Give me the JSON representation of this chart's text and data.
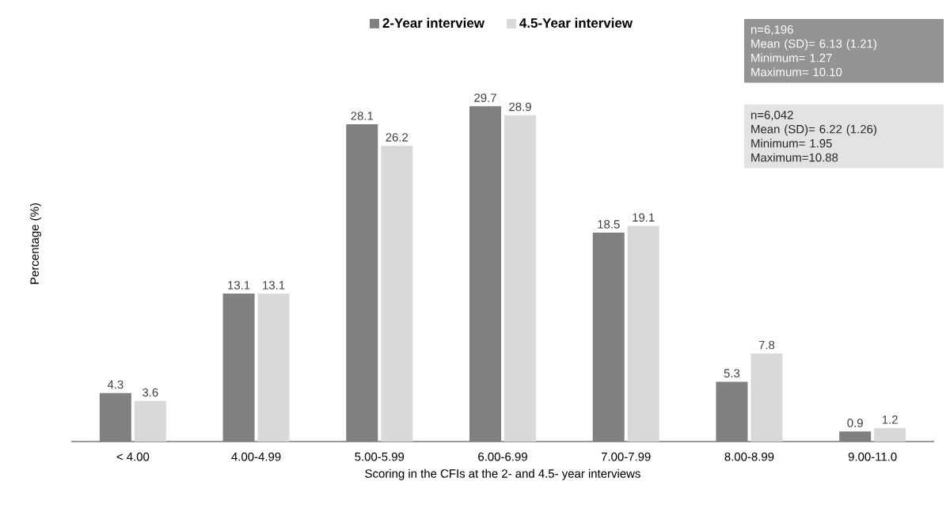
{
  "chart_data": {
    "type": "bar",
    "xlabel": "Scoring in the CFIs at the 2- and 4.5- year interviews",
    "ylabel": "Percentage (%)",
    "categories": [
      "< 4.00",
      "4.00-4.99",
      "5.00-5.99",
      "6.00-6.99",
      "7.00-7.99",
      "8.00-8.99",
      "9.00-11.0"
    ],
    "series": [
      {
        "name": "2-Year interview",
        "color": "#808080",
        "values": [
          4.3,
          13.1,
          28.1,
          29.7,
          18.5,
          5.3,
          0.9
        ]
      },
      {
        "name": "4.5-Year interview",
        "color": "#d9d9d9",
        "values": [
          3.6,
          13.1,
          26.2,
          28.9,
          19.1,
          7.8,
          1.2
        ]
      }
    ],
    "annotations": [
      "n=6,196",
      "Mean (SD)= 6.13 (1.21)",
      "Minimum= 1.27",
      "Maximum= 10.10",
      "n=6,042",
      "Mean (SD)= 6.22 (1.26)",
      "Minimum= 1.95",
      "Maximum=10.88"
    ],
    "data_labels": true,
    "tick_labels": "x",
    "legend": "top"
  }
}
